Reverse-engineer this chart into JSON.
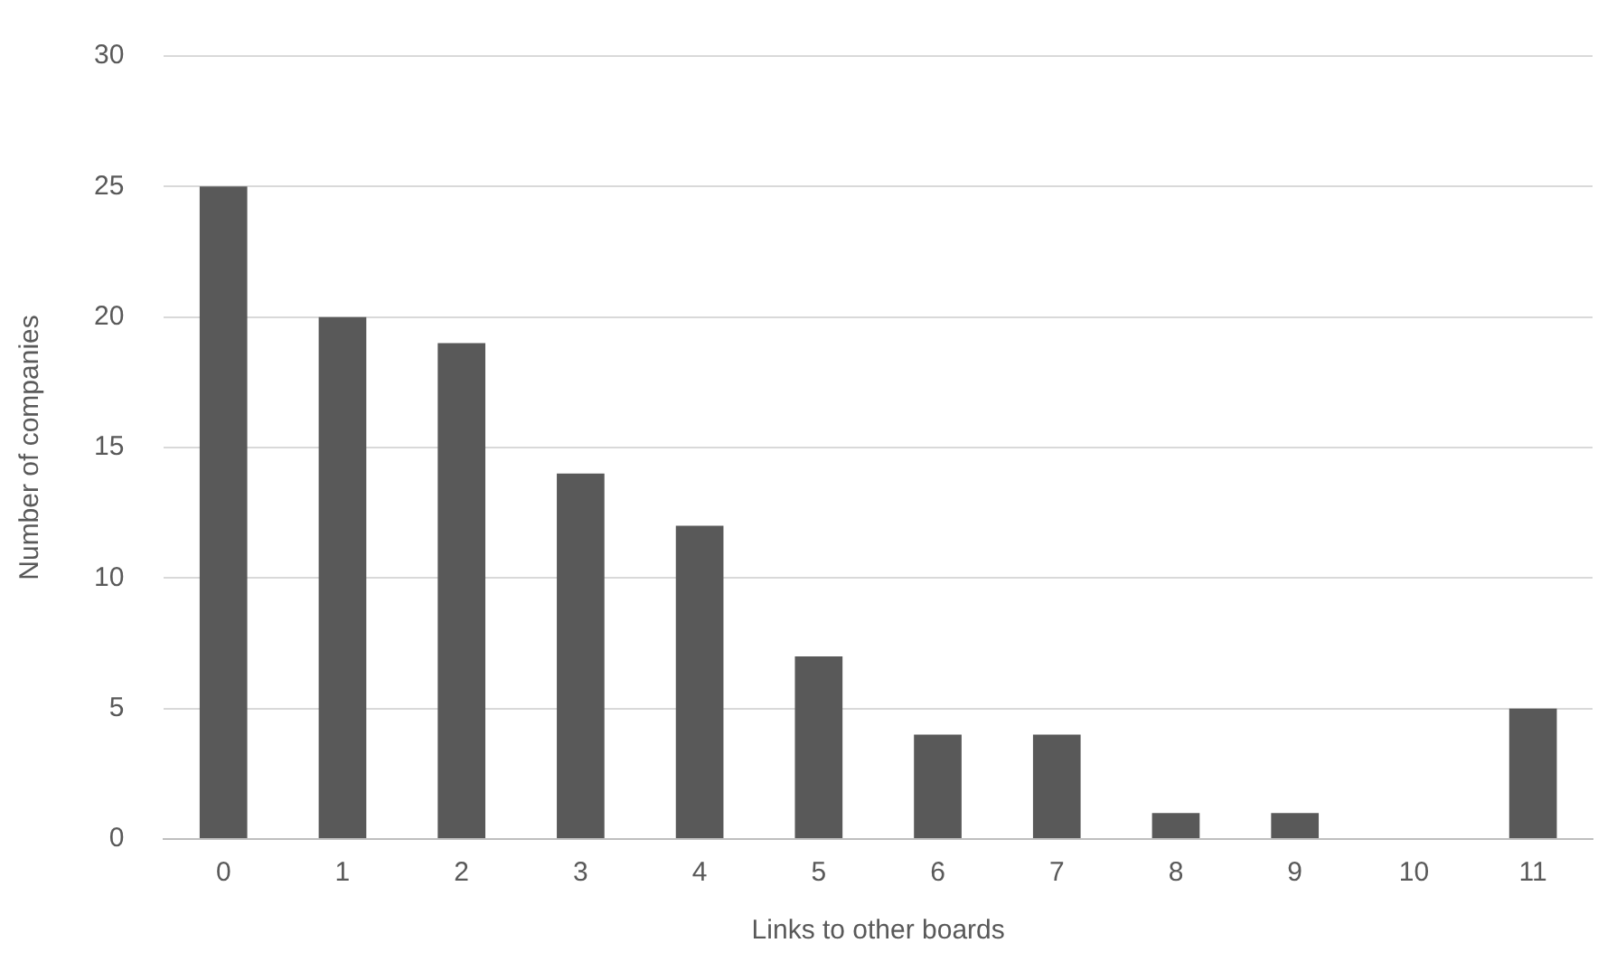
{
  "chart_data": {
    "type": "bar",
    "xlabel": "Links to other boards",
    "ylabel": "Number of companies",
    "categories": [
      "0",
      "1",
      "2",
      "3",
      "4",
      "5",
      "6",
      "7",
      "8",
      "9",
      "10",
      "11"
    ],
    "values": [
      25,
      20,
      19,
      14,
      12,
      7,
      4,
      4,
      1,
      1,
      0,
      5
    ],
    "color": "#595959",
    "ylim": [
      0,
      30
    ],
    "yticks": [
      0,
      5,
      10,
      15,
      20,
      25,
      30
    ],
    "grid": "y",
    "legend": false
  }
}
